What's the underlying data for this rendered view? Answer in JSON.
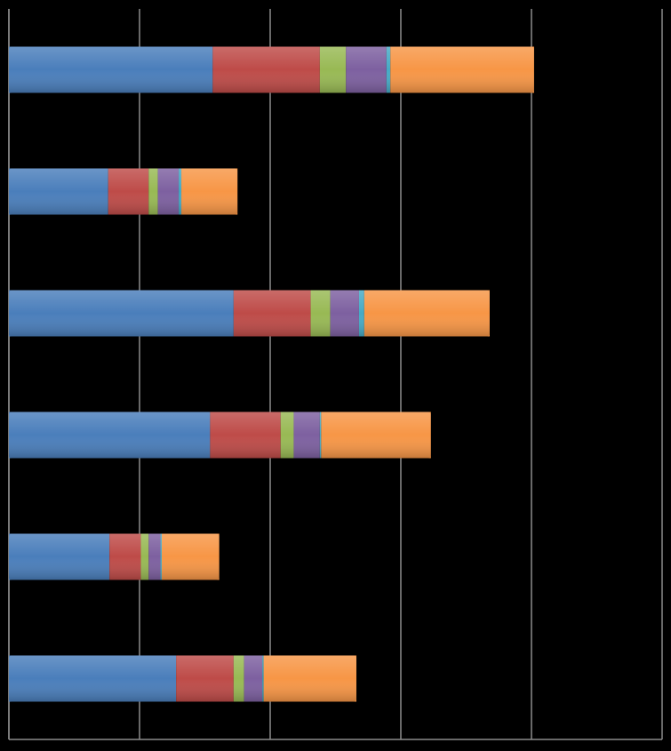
{
  "chart_data": {
    "type": "bar",
    "orientation": "horizontal",
    "stacked": true,
    "grid": true,
    "xlim": [
      0,
      5
    ],
    "xticks": [
      0,
      1,
      2,
      3,
      4,
      5
    ],
    "series": [
      {
        "color": "#4a7ebb",
        "values": [
          1.56,
          0.76,
          1.72,
          1.54,
          0.77,
          1.28
        ]
      },
      {
        "color": "#be4b48",
        "values": [
          0.82,
          0.31,
          0.59,
          0.54,
          0.24,
          0.44
        ]
      },
      {
        "color": "#98b954",
        "values": [
          0.2,
          0.07,
          0.15,
          0.1,
          0.06,
          0.08
        ]
      },
      {
        "color": "#7d60a0",
        "values": [
          0.31,
          0.16,
          0.22,
          0.2,
          0.09,
          0.14
        ]
      },
      {
        "color": "#46aac5",
        "values": [
          0.03,
          0.02,
          0.04,
          0.01,
          0.01,
          0.01
        ]
      },
      {
        "color": "#f79646",
        "values": [
          1.1,
          0.43,
          0.96,
          0.84,
          0.44,
          0.71
        ]
      }
    ]
  }
}
